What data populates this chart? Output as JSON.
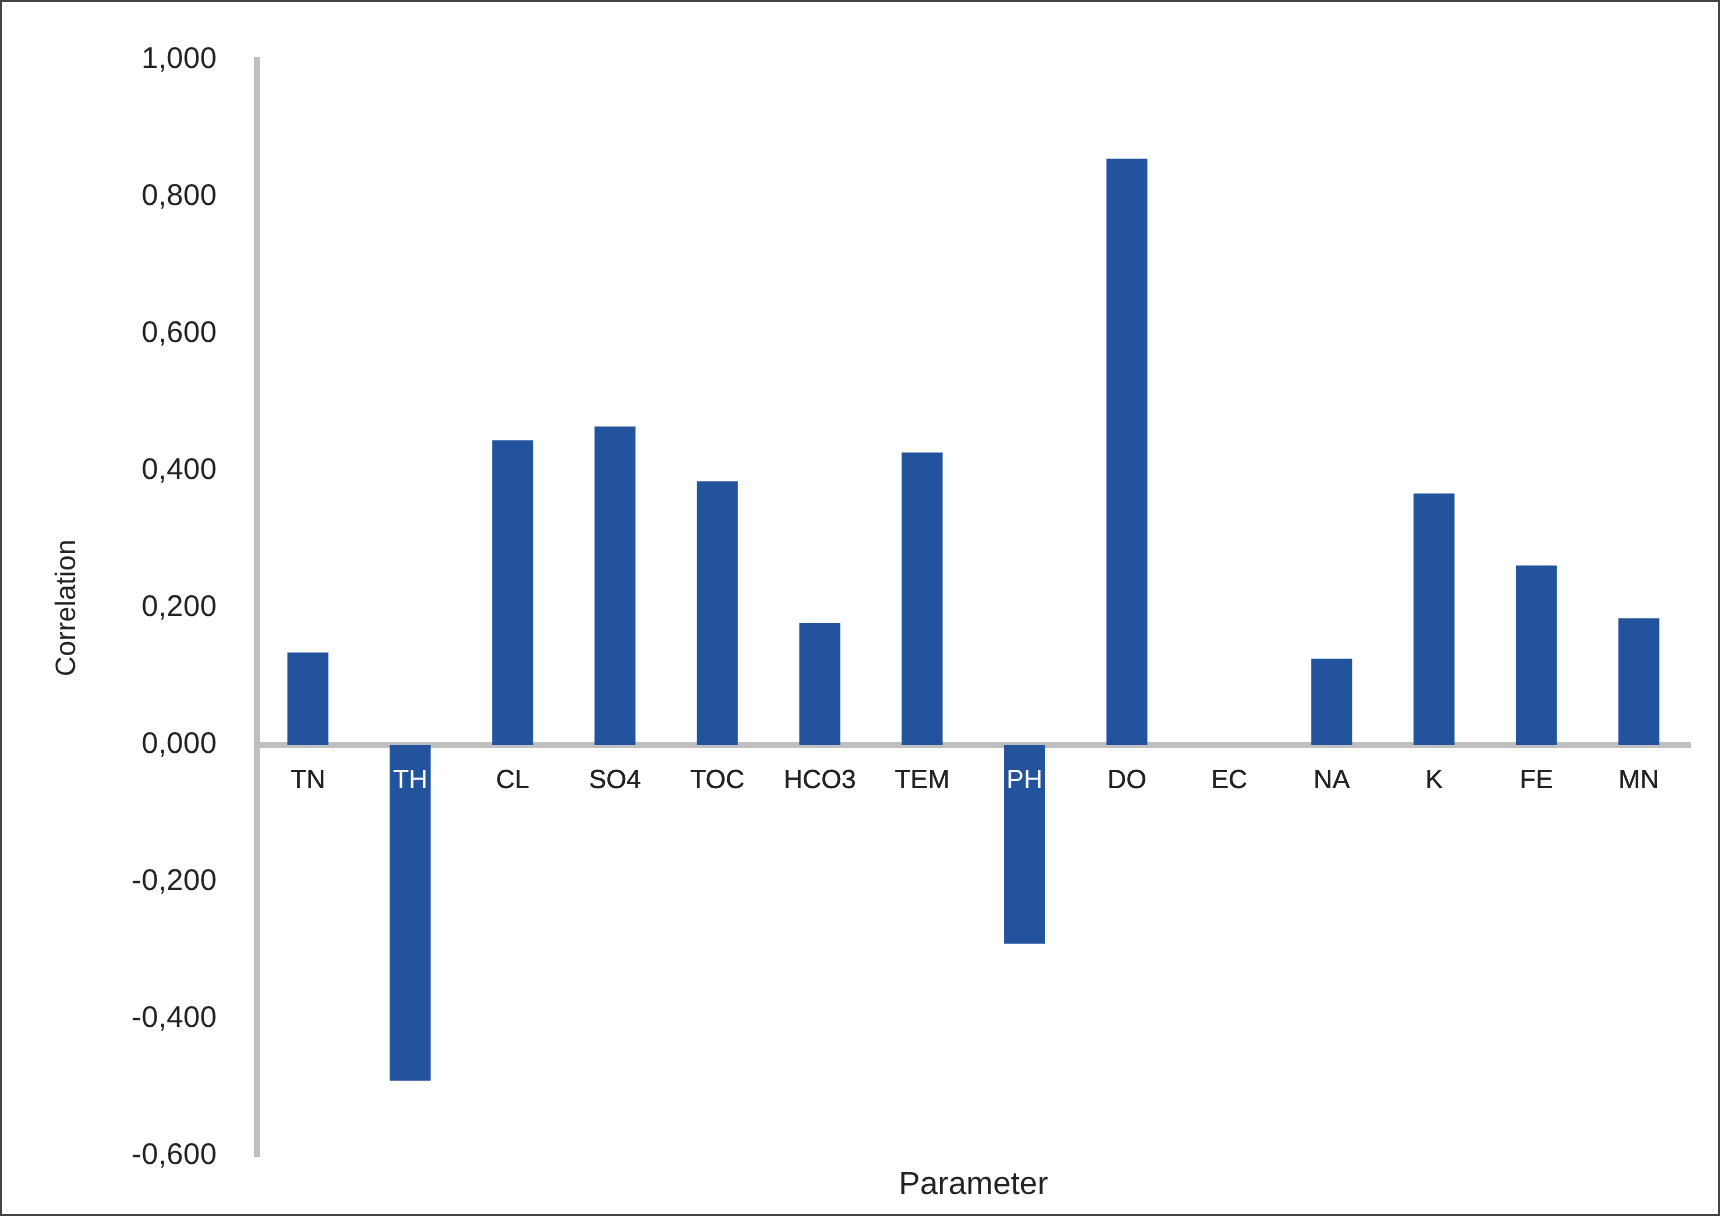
{
  "chart_data": {
    "type": "bar",
    "xlabel": "Parameter",
    "ylabel": "Correlation",
    "categories": [
      "TN",
      "TH",
      "CL",
      "SO4",
      "TOC",
      "HCO3",
      "TEM",
      "PH",
      "DO",
      "EC",
      "NA",
      "K",
      "FE",
      "MN"
    ],
    "values": [
      0.135,
      -0.49,
      0.445,
      0.465,
      0.385,
      0.178,
      0.427,
      -0.29,
      0.856,
      0,
      0.126,
      0.367,
      0.262,
      0.185
    ],
    "color": "#22539c",
    "ylim": [
      -0.6,
      1
    ],
    "yticks": [
      {
        "value": -0.6,
        "label": "-0,600"
      },
      {
        "value": -0.4,
        "label": "-0,400"
      },
      {
        "value": -0.2,
        "label": "-0,200"
      },
      {
        "value": 0,
        "label": "0,000"
      },
      {
        "value": 0.2,
        "label": "0,200"
      },
      {
        "value": 0.4,
        "label": "0,400"
      },
      {
        "value": 0.6,
        "label": "0,600"
      },
      {
        "value": 0.8,
        "label": "0,800"
      },
      {
        "value": 1,
        "label": "1,000"
      }
    ],
    "grid": false,
    "legend": false
  }
}
